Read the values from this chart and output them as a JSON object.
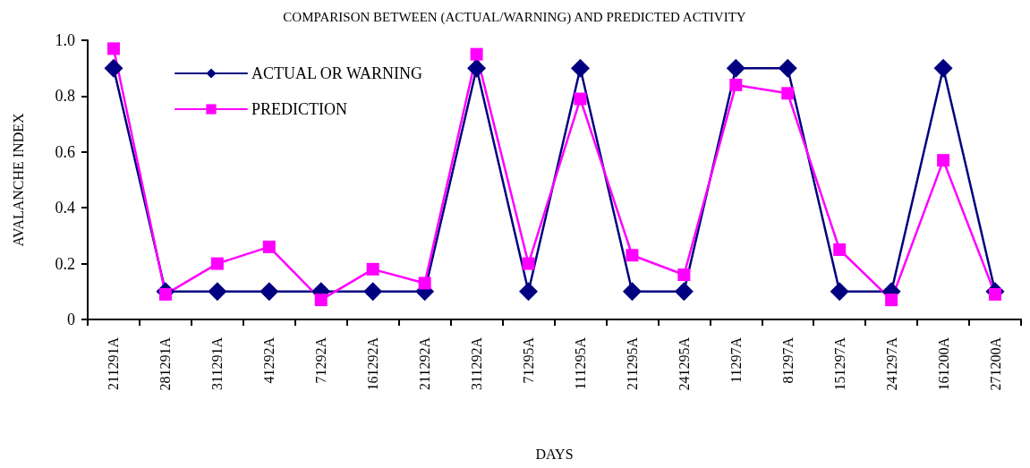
{
  "chart_data": {
    "type": "line",
    "title": "COMPARISON BETWEEN (ACTUAL/WARNING) AND PREDICTED ACTIVITY",
    "xlabel": "DAYS",
    "ylabel": "AVALANCHE INDEX",
    "categories": [
      "211291A",
      "281291A",
      "311291A",
      "41292A",
      "71292A",
      "161292A",
      "211292A",
      "311292A",
      "71295A",
      "111295A",
      "211295A",
      "241295A",
      "11297A",
      "81297A",
      "151297A",
      "241297A",
      "161200A",
      "271200A"
    ],
    "series": [
      {
        "name": "ACTUAL OR WARNING",
        "color": "#000080",
        "marker": "diamond",
        "values": [
          0.9,
          0.1,
          0.1,
          0.1,
          0.1,
          0.1,
          0.1,
          0.9,
          0.1,
          0.9,
          0.1,
          0.1,
          0.9,
          0.9,
          0.1,
          0.1,
          0.9,
          0.1
        ]
      },
      {
        "name": "PREDICTION",
        "color": "#ff00ff",
        "marker": "square",
        "values": [
          0.97,
          0.09,
          0.2,
          0.26,
          0.07,
          0.18,
          0.13,
          0.95,
          0.2,
          0.79,
          0.23,
          0.16,
          0.84,
          0.81,
          0.25,
          0.07,
          0.57,
          0.09
        ]
      }
    ],
    "ylim": [
      0,
      1
    ],
    "yticks": [
      {
        "value": 0,
        "label": "0"
      },
      {
        "value": 0.2,
        "label": "0.2"
      },
      {
        "value": 0.4,
        "label": "0.4"
      },
      {
        "value": 0.6,
        "label": "0.6"
      },
      {
        "value": 0.8,
        "label": "0.8"
      },
      {
        "value": 1,
        "label": "1.0"
      }
    ],
    "grid": false,
    "legend": "top left",
    "line_style": "solid"
  }
}
